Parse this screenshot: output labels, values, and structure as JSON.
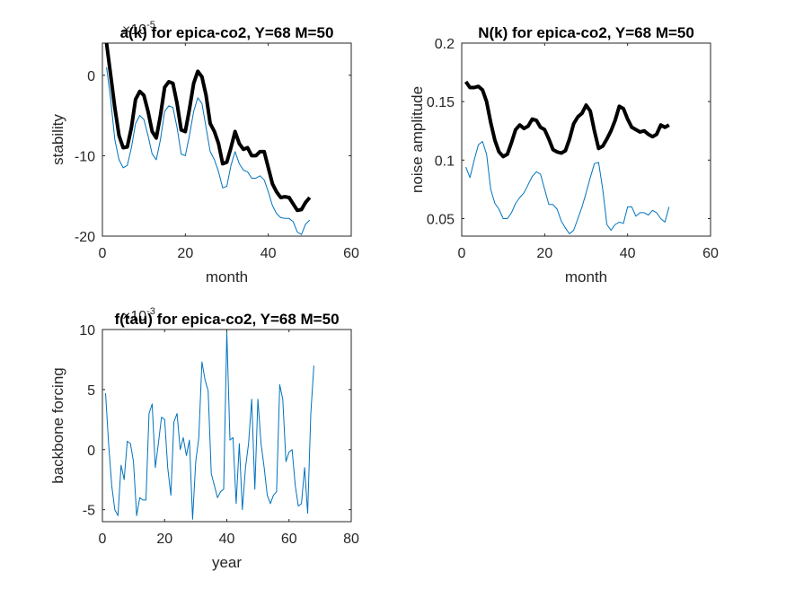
{
  "charts": [
    {
      "type": "line",
      "title": "a(k) for epica-co2, Y=68 M=50",
      "xlabel": "month",
      "ylabel": "stability",
      "multiplier": "×10^-5",
      "xlim": [
        0,
        60
      ],
      "ylim": [
        -20,
        4
      ],
      "xticks": [
        0,
        20,
        40,
        60
      ],
      "yticks": [
        -20,
        -10,
        0
      ],
      "series": [
        {
          "color": "#000000",
          "width": 4,
          "x": [
            1,
            2,
            3,
            4,
            5,
            6,
            7,
            8,
            9,
            10,
            11,
            12,
            13,
            14,
            15,
            16,
            17,
            18,
            19,
            20,
            21,
            22,
            23,
            24,
            25,
            26,
            27,
            28,
            29,
            30,
            31,
            32,
            33,
            34,
            35,
            36,
            37,
            38,
            39,
            40,
            41,
            42,
            43,
            44,
            45,
            46,
            47,
            48,
            49,
            50
          ],
          "y": [
            4,
            0,
            -4,
            -7.5,
            -9,
            -8.9,
            -6.5,
            -3,
            -2,
            -2.5,
            -4.5,
            -7,
            -7.8,
            -5,
            -1.5,
            -0.8,
            -1,
            -3.5,
            -6.8,
            -7,
            -4.2,
            -1,
            0.5,
            -0.2,
            -2.5,
            -6,
            -7,
            -8.5,
            -11,
            -10.8,
            -9,
            -7,
            -8.5,
            -9.2,
            -9,
            -10,
            -10,
            -9.5,
            -9.5,
            -11.5,
            -13.5,
            -14.5,
            -15.2,
            -15.1,
            -15.2,
            -16,
            -16.8,
            -16.7,
            -15.8,
            -15.2
          ]
        },
        {
          "color": "#0072BD",
          "width": 1,
          "x": [
            1,
            2,
            3,
            4,
            5,
            6,
            7,
            8,
            9,
            10,
            11,
            12,
            13,
            14,
            15,
            16,
            17,
            18,
            19,
            20,
            21,
            22,
            23,
            24,
            25,
            26,
            27,
            28,
            29,
            30,
            31,
            32,
            33,
            34,
            35,
            36,
            37,
            38,
            39,
            40,
            41,
            42,
            43,
            44,
            45,
            46,
            47,
            48,
            49,
            50
          ],
          "y": [
            1,
            -3,
            -8,
            -10.5,
            -11.5,
            -11.2,
            -9,
            -6,
            -5,
            -5.5,
            -7.5,
            -9.8,
            -10.5,
            -8,
            -4.5,
            -3.8,
            -4,
            -6.5,
            -9.8,
            -10,
            -7.5,
            -4.5,
            -2.8,
            -3.5,
            -6.5,
            -9.5,
            -10.5,
            -12,
            -14,
            -13.8,
            -11.2,
            -9.5,
            -11,
            -11.8,
            -12,
            -12.8,
            -12.8,
            -12.5,
            -13,
            -14.5,
            -16.2,
            -17.2,
            -17.7,
            -17.8,
            -17.8,
            -18.2,
            -19.5,
            -19.8,
            -18.5,
            -18
          ]
        }
      ]
    },
    {
      "type": "line",
      "title": "N(k) for epica-co2, Y=68 M=50",
      "xlabel": "month",
      "ylabel": "noise amplitude",
      "xlim": [
        0,
        60
      ],
      "ylim": [
        0.035,
        0.2
      ],
      "xticks": [
        0,
        20,
        40,
        60
      ],
      "yticks": [
        0.05,
        0.1,
        0.15,
        0.2
      ],
      "ytick_labels": [
        "0.05",
        "0.1",
        "0.15",
        "0.2"
      ],
      "series": [
        {
          "color": "#000000",
          "width": 4,
          "x": [
            1,
            2,
            3,
            4,
            5,
            6,
            7,
            8,
            9,
            10,
            11,
            12,
            13,
            14,
            15,
            16,
            17,
            18,
            19,
            20,
            21,
            22,
            23,
            24,
            25,
            26,
            27,
            28,
            29,
            30,
            31,
            32,
            33,
            34,
            35,
            36,
            37,
            38,
            39,
            40,
            41,
            42,
            43,
            44,
            45,
            46,
            47,
            48,
            49,
            50
          ],
          "y": [
            0.167,
            0.162,
            0.162,
            0.163,
            0.16,
            0.15,
            0.132,
            0.117,
            0.107,
            0.103,
            0.105,
            0.115,
            0.126,
            0.13,
            0.127,
            0.129,
            0.135,
            0.134,
            0.128,
            0.126,
            0.118,
            0.109,
            0.107,
            0.106,
            0.108,
            0.118,
            0.131,
            0.137,
            0.14,
            0.147,
            0.142,
            0.125,
            0.11,
            0.112,
            0.118,
            0.125,
            0.134,
            0.146,
            0.144,
            0.135,
            0.128,
            0.126,
            0.124,
            0.125,
            0.122,
            0.12,
            0.122,
            0.13,
            0.128,
            0.13
          ]
        },
        {
          "color": "#0072BD",
          "width": 1,
          "x": [
            1,
            2,
            3,
            4,
            5,
            6,
            7,
            8,
            9,
            10,
            11,
            12,
            13,
            14,
            15,
            16,
            17,
            18,
            19,
            20,
            21,
            22,
            23,
            24,
            25,
            26,
            27,
            28,
            29,
            30,
            31,
            32,
            33,
            34,
            35,
            36,
            37,
            38,
            39,
            40,
            41,
            42,
            43,
            44,
            45,
            46,
            47,
            48,
            49,
            50
          ],
          "y": [
            0.094,
            0.085,
            0.1,
            0.113,
            0.116,
            0.105,
            0.075,
            0.063,
            0.058,
            0.05,
            0.05,
            0.055,
            0.063,
            0.068,
            0.072,
            0.079,
            0.086,
            0.09,
            0.088,
            0.075,
            0.062,
            0.062,
            0.058,
            0.048,
            0.042,
            0.037,
            0.04,
            0.05,
            0.06,
            0.072,
            0.085,
            0.097,
            0.098,
            0.075,
            0.045,
            0.04,
            0.045,
            0.047,
            0.046,
            0.06,
            0.06,
            0.052,
            0.055,
            0.055,
            0.053,
            0.057,
            0.055,
            0.05,
            0.047,
            0.06
          ]
        }
      ]
    },
    {
      "type": "line",
      "title": "f(tau) for epica-co2, Y=68 M=50",
      "xlabel": "year",
      "ylabel": "backbone forcing",
      "multiplier": "×10^-3",
      "xlim": [
        0,
        80
      ],
      "ylim": [
        -6,
        10
      ],
      "xticks": [
        0,
        20,
        40,
        60,
        80
      ],
      "yticks": [
        -5,
        0,
        5,
        10
      ],
      "series": [
        {
          "color": "#0072BD",
          "width": 1,
          "x": [
            1,
            2,
            3,
            4,
            5,
            6,
            7,
            8,
            9,
            10,
            11,
            12,
            13,
            14,
            15,
            16,
            17,
            18,
            19,
            20,
            21,
            22,
            23,
            24,
            25,
            26,
            27,
            28,
            29,
            30,
            31,
            32,
            33,
            34,
            35,
            36,
            37,
            38,
            39,
            40,
            41,
            42,
            43,
            44,
            45,
            46,
            47,
            48,
            49,
            50,
            51,
            52,
            53,
            54,
            55,
            56,
            57,
            58,
            59,
            60,
            61,
            62,
            63,
            64,
            65,
            66,
            67,
            68
          ],
          "y": [
            4.7,
            0.5,
            -3,
            -5,
            -5.5,
            -1.3,
            -2.5,
            0.7,
            0.5,
            -1,
            -5.5,
            -4,
            -4.2,
            -4.2,
            3,
            3.8,
            -1.5,
            0.5,
            2.7,
            2.5,
            -1.5,
            -3.8,
            2.3,
            3,
            0,
            1,
            -0.5,
            0.8,
            -5.8,
            -1,
            1,
            7.3,
            5.8,
            4.9,
            -2,
            -3,
            -4,
            -3.5,
            -3.3,
            9.8,
            0.8,
            1,
            -4.5,
            0.5,
            -5,
            -1.5,
            0.5,
            4.2,
            -3.3,
            4.2,
            0.5,
            -1.5,
            -3.8,
            -4.5,
            -3.8,
            -3.5,
            5.4,
            4.2,
            -1,
            -0.2,
            0,
            -3,
            -4.7,
            -4.5,
            -1.5,
            -5.3,
            3,
            7
          ]
        }
      ]
    }
  ]
}
